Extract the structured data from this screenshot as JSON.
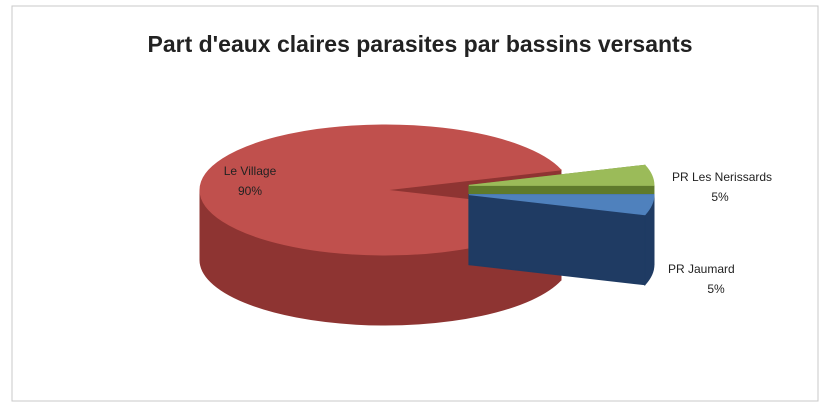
{
  "chart_data": {
    "type": "pie",
    "title": "Part d'eaux claires parasites par bassins versants",
    "categories": [
      "Le Village",
      "PR Les Nerissards",
      "PR Jaumard"
    ],
    "values": [
      90,
      5,
      5
    ],
    "value_labels": [
      "90%",
      "5%",
      "5%"
    ],
    "colors": [
      "#c0504d",
      "#9bbb59",
      "#4f81bd"
    ],
    "side_colors": [
      "#8e3432",
      "#5f7a2c",
      "#1f3b63"
    ],
    "exploded": [
      false,
      true,
      true
    ]
  }
}
